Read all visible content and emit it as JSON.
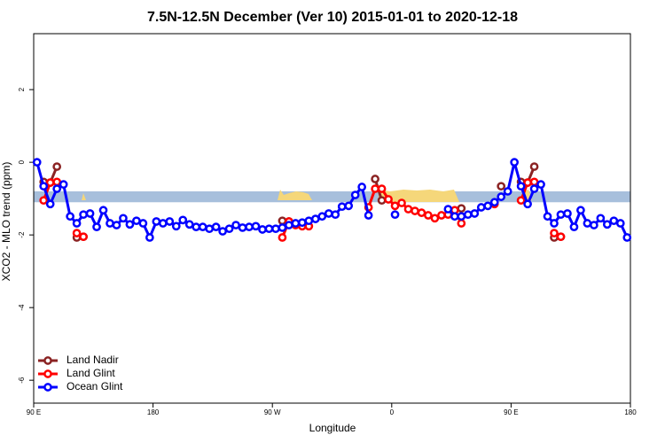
{
  "chart_data": {
    "type": "line",
    "title": "7.5N-12.5N December (Ver 10)   2015-01-01 to 2020-12-18",
    "x_label": "Longitude",
    "y_label": "XCO2 - MLO trend (ppm)",
    "xlim": [
      90,
      540
    ],
    "xticks": [
      {
        "value": 90,
        "label": "90 E"
      },
      180,
      {
        "value": 270,
        "label": "90 W"
      },
      {
        "value": 360,
        "label": "0"
      },
      {
        "value": 450,
        "label": "90 E"
      },
      {
        "value": 540,
        "label": "180"
      }
    ],
    "ylim": [
      -6.63,
      3.54
    ],
    "yticks": [
      -6,
      -4,
      -2,
      0,
      2
    ],
    "reference_band": {
      "ylim": [
        -1.1,
        -0.8
      ],
      "color": "#a7bfdc"
    },
    "legend": "bottom-left",
    "x": [
      92.5,
      97.5,
      102.5,
      107.5,
      112.5,
      117.5,
      122.5,
      127.5,
      132.5,
      137.5,
      142.5,
      147.5,
      152.5,
      157.5,
      162.5,
      167.5,
      172.5,
      177.5,
      182.5,
      187.5,
      192.5,
      197.5,
      202.5,
      207.5,
      212.5,
      217.5,
      222.5,
      227.5,
      232.5,
      237.5,
      242.5,
      247.5,
      252.5,
      257.5,
      262.5,
      267.5,
      272.5,
      277.5,
      282.5,
      287.5,
      292.5,
      297.5,
      302.5,
      307.5,
      312.5,
      317.5,
      322.5,
      327.5,
      332.5,
      337.5,
      342.5,
      347.5,
      352.5,
      357.5,
      362.5,
      367.5,
      372.5,
      377.5,
      382.5,
      387.5,
      392.5,
      397.5,
      402.5,
      407.5,
      412.5,
      417.5,
      422.5,
      427.5,
      432.5,
      437.5,
      442.5,
      447.5,
      452.5,
      457.5,
      462.5,
      467.5,
      472.5,
      477.5,
      482.5,
      487.5,
      492.5,
      497.5,
      502.5,
      507.5,
      512.5,
      517.5,
      522.5,
      527.5,
      532.5,
      537.5
    ],
    "series": [
      {
        "name": "Land Nadir",
        "color": "#8b2323",
        "values": [
          null,
          -0.54,
          -0.56,
          -0.12,
          null,
          null,
          -2.07,
          -2.05,
          null,
          null,
          null,
          null,
          null,
          null,
          null,
          null,
          null,
          null,
          null,
          null,
          null,
          null,
          null,
          null,
          null,
          null,
          null,
          null,
          null,
          null,
          null,
          null,
          null,
          null,
          null,
          null,
          null,
          -1.61,
          -1.63,
          null,
          null,
          null,
          null,
          null,
          null,
          null,
          null,
          null,
          null,
          null,
          null,
          -0.46,
          -1.05,
          null,
          null,
          null,
          null,
          null,
          null,
          null,
          null,
          null,
          null,
          null,
          -1.27,
          null,
          null,
          null,
          null,
          null,
          -0.66,
          null,
          null,
          -0.54,
          -0.56,
          -0.12,
          null,
          null,
          -2.07,
          -2.05,
          null,
          null,
          null,
          null,
          null,
          null,
          null,
          null,
          null,
          null
        ]
      },
      {
        "name": "Land Glint",
        "color": "#ff0000",
        "values": [
          null,
          -1.05,
          -0.56,
          -0.54,
          null,
          null,
          -1.95,
          -2.05,
          null,
          null,
          null,
          null,
          null,
          null,
          null,
          null,
          null,
          null,
          null,
          null,
          null,
          null,
          null,
          null,
          null,
          null,
          null,
          null,
          null,
          null,
          null,
          null,
          null,
          null,
          null,
          null,
          null,
          -2.07,
          -1.63,
          -1.73,
          -1.76,
          -1.76,
          null,
          null,
          null,
          null,
          null,
          null,
          null,
          null,
          -1.24,
          -0.73,
          -0.73,
          -1.02,
          -1.2,
          -1.12,
          -1.29,
          -1.34,
          -1.39,
          -1.46,
          -1.54,
          -1.46,
          -1.44,
          -1.32,
          -1.68,
          null,
          null,
          null,
          null,
          -1.15,
          null,
          null,
          null,
          -1.05,
          -0.56,
          -0.54,
          null,
          null,
          -1.95,
          -2.05,
          null,
          null,
          null,
          null,
          null,
          null,
          null,
          null,
          null,
          null
        ]
      },
      {
        "name": "Ocean Glint",
        "color": "#0000ff",
        "values": [
          0.0,
          -0.66,
          -1.15,
          -0.73,
          -0.61,
          -1.49,
          -1.68,
          -1.44,
          -1.41,
          -1.78,
          -1.32,
          -1.68,
          -1.73,
          -1.54,
          -1.71,
          -1.61,
          -1.68,
          -2.07,
          -1.63,
          -1.68,
          -1.63,
          -1.76,
          -1.59,
          -1.71,
          -1.78,
          -1.78,
          -1.83,
          -1.78,
          -1.9,
          -1.83,
          -1.73,
          -1.8,
          -1.78,
          -1.76,
          -1.85,
          -1.83,
          -1.83,
          -1.8,
          -1.73,
          -1.68,
          -1.66,
          -1.61,
          -1.56,
          -1.49,
          -1.41,
          -1.44,
          -1.22,
          -1.2,
          -0.9,
          -0.68,
          -1.46,
          null,
          null,
          null,
          -1.44,
          null,
          null,
          null,
          null,
          null,
          null,
          null,
          -1.29,
          -1.49,
          -1.49,
          -1.44,
          -1.41,
          -1.24,
          -1.2,
          -1.1,
          -0.95,
          -0.8,
          0.0,
          -0.66,
          -1.15,
          -0.73,
          -0.61,
          -1.49,
          -1.68,
          -1.44,
          -1.41,
          -1.78,
          -1.32,
          -1.68,
          -1.73,
          -1.54,
          -1.71,
          -1.61,
          -1.68,
          -2.07
        ]
      }
    ]
  }
}
